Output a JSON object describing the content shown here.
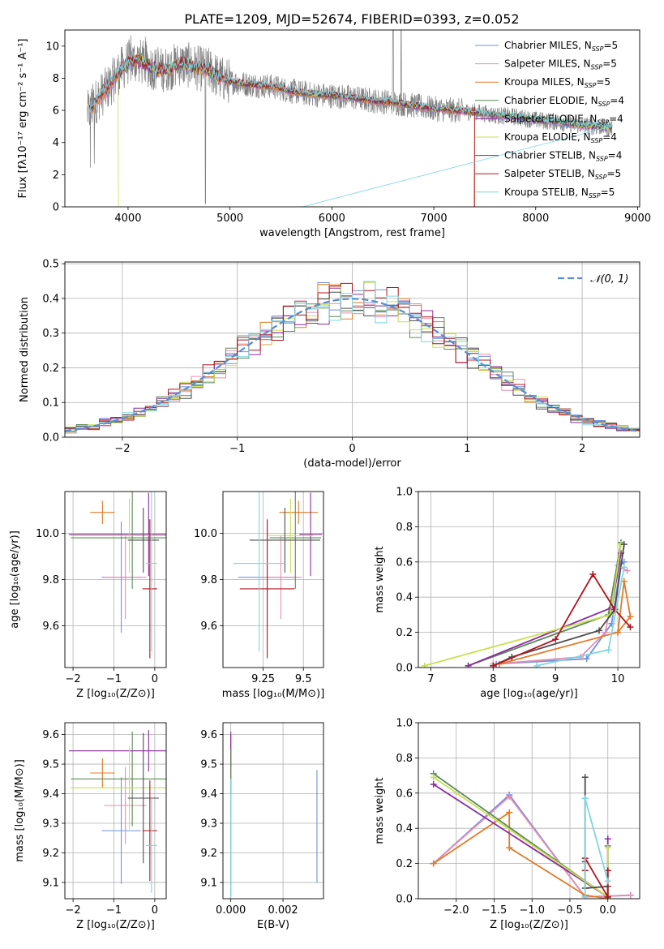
{
  "title": "PLATE=1209, MJD=52674, FIBERID=0393, z=0.052",
  "colors": {
    "Chabrier MILES": "#6f8fe0",
    "Salpeter MILES": "#e58fb3",
    "Kroupa MILES": "#e07b28",
    "Chabrier ELODIE": "#5b8a5b",
    "Salpeter ELODIE": "#8b2c9e",
    "Kroupa ELODIE": "#c9df50",
    "Chabrier STELIB": "#4d4d4d",
    "Salpeter STELIB": "#b0141d",
    "Kroupa STELIB": "#7fd6df",
    "data": "#808080",
    "gauss": "#5b8bd0",
    "grid": "#b0b0b0"
  },
  "chart_data": [
    {
      "id": "spectrum",
      "type": "line",
      "xlabel": "wavelength [Angstrom, rest frame]",
      "ylabel": "Flux [fλ10⁻¹⁷ erg cm⁻² s⁻¹ A⁻¹]",
      "xlim": [
        3380,
        9020
      ],
      "ylim": [
        0,
        11
      ],
      "xticks": [
        4000,
        5000,
        6000,
        7000,
        8000,
        9000
      ],
      "yticks": [
        0,
        2,
        4,
        6,
        8,
        10
      ],
      "grid": false,
      "legend_position": "top-right",
      "legend": [
        {
          "base": "Chabrier MILES, N",
          "sub": "SSP",
          "tail": "=5"
        },
        {
          "base": "Salpeter MILES, N",
          "sub": "SSP",
          "tail": "=5"
        },
        {
          "base": "Kroupa MILES, N",
          "sub": "SSP",
          "tail": "=5"
        },
        {
          "base": "Chabrier ELODIE, N",
          "sub": "SSP",
          "tail": "=4"
        },
        {
          "base": "Salpeter ELODIE, N",
          "sub": "SSP",
          "tail": "=4"
        },
        {
          "base": "Kroupa ELODIE, N",
          "sub": "SSP",
          "tail": "=4"
        },
        {
          "base": "Chabrier STELIB, N",
          "sub": "SSP",
          "tail": "=4"
        },
        {
          "base": "Salpeter STELIB, N",
          "sub": "SSP",
          "tail": "=5"
        },
        {
          "base": "Kroupa STELIB, N",
          "sub": "SSP",
          "tail": "=5"
        }
      ],
      "continuum": {
        "x": [
          3600,
          3700,
          3800,
          3900,
          4000,
          4100,
          4200,
          4300,
          4400,
          4500,
          4600,
          4700,
          4800,
          4900,
          5000,
          5200,
          5400,
          5600,
          5800,
          6000,
          6200,
          6400,
          6600,
          6800,
          7000,
          7200,
          7400,
          7600,
          7800,
          8000,
          8200,
          8400,
          8600,
          8750
        ],
        "y": [
          5.8,
          6.7,
          7.4,
          8.3,
          9.0,
          9.1,
          8.8,
          8.5,
          8.6,
          8.9,
          8.8,
          8.6,
          8.5,
          8.0,
          7.8,
          7.6,
          7.5,
          7.2,
          7.0,
          6.9,
          6.8,
          6.6,
          6.5,
          6.3,
          6.1,
          6.0,
          5.9,
          5.7,
          5.6,
          5.4,
          5.3,
          5.1,
          5.0,
          4.9
        ]
      }
    },
    {
      "id": "residuals",
      "type": "line",
      "xlabel": "(data-model)/error",
      "ylabel": "Normed distribution",
      "xlim": [
        -2.5,
        2.5
      ],
      "ylim": [
        0,
        0.505
      ],
      "xticks": [
        -2,
        -1,
        0,
        1,
        2
      ],
      "yticks": [
        0.0,
        0.1,
        0.2,
        0.3,
        0.4,
        0.5
      ],
      "grid": true,
      "legend_position": "top-right",
      "legend": [
        {
          "name": "𝒩(0, 1)"
        }
      ],
      "bin_width": 0.1
    },
    {
      "id": "age_vs_Z",
      "type": "scatter",
      "xlabel": "Z [log₁₀(Z/Z⊙)]",
      "ylabel": "age  [log₁₀(age/yr)]",
      "xlim": [
        -2.2,
        0.28
      ],
      "ylim": [
        9.42,
        10.18
      ],
      "xticks": [
        -2,
        -1,
        0
      ],
      "yticks": [
        9.6,
        9.8,
        10.0
      ],
      "grid": true,
      "points": [
        {
          "series": "Chabrier MILES",
          "x": -0.82,
          "xerr": 0.48,
          "y": 9.81,
          "yerr": 0.24
        },
        {
          "series": "Salpeter MILES",
          "x": -0.72,
          "xerr": 0.52,
          "y": 9.81,
          "yerr": 0.18
        },
        {
          "series": "Kroupa MILES",
          "x": -1.28,
          "xerr": 0.3,
          "y": 10.09,
          "yerr": 0.05
        },
        {
          "series": "Chabrier ELODIE",
          "x": -0.55,
          "xerr": 1.5,
          "y": 9.98,
          "yerr": 0.22
        },
        {
          "series": "Salpeter ELODIE",
          "x": -0.15,
          "xerr": 1.95,
          "y": 9.995,
          "yerr": 0.18
        },
        {
          "series": "Kroupa ELODIE",
          "x": -0.62,
          "xerr": 1.45,
          "y": 9.99,
          "yerr": 0.16
        },
        {
          "series": "Chabrier STELIB",
          "x": -0.28,
          "xerr": 0.38,
          "y": 9.97,
          "yerr": 0.14
        },
        {
          "series": "Salpeter STELIB",
          "x": -0.12,
          "xerr": 0.18,
          "y": 9.76,
          "yerr": 0.3
        },
        {
          "series": "Kroupa STELIB",
          "x": -0.08,
          "xerr": 0.14,
          "y": 9.87,
          "yerr": 0.38
        }
      ]
    },
    {
      "id": "age_vs_mass",
      "type": "scatter",
      "xlabel": "mass [log₁₀(M/M⊙)]",
      "ylabel": "",
      "xlim": [
        9.0,
        9.625
      ],
      "ylim": [
        9.42,
        10.18
      ],
      "xticks": [
        9.25,
        9.5
      ],
      "yticks": [
        9.6,
        9.8,
        10.0
      ],
      "grid": true,
      "points": [
        {
          "series": "Chabrier MILES",
          "x": 9.275,
          "xerr": 0.18,
          "y": 9.81,
          "yerr": 0.24
        },
        {
          "series": "Salpeter MILES",
          "x": 9.36,
          "xerr": 0.13,
          "y": 9.81,
          "yerr": 0.18
        },
        {
          "series": "Kroupa MILES",
          "x": 9.47,
          "xerr": 0.12,
          "y": 10.09,
          "yerr": 0.05
        },
        {
          "series": "Chabrier ELODIE",
          "x": 9.45,
          "xerr": 0.16,
          "y": 9.98,
          "yerr": 0.22
        },
        {
          "series": "Salpeter ELODIE",
          "x": 9.545,
          "xerr": 0.07,
          "y": 9.995,
          "yerr": 0.18
        },
        {
          "series": "Kroupa ELODIE",
          "x": 9.42,
          "xerr": 0.14,
          "y": 9.99,
          "yerr": 0.16
        },
        {
          "series": "Chabrier STELIB",
          "x": 9.385,
          "xerr": 0.22,
          "y": 9.97,
          "yerr": 0.14
        },
        {
          "series": "Salpeter STELIB",
          "x": 9.275,
          "xerr": 0.17,
          "y": 9.76,
          "yerr": 0.3
        },
        {
          "series": "Kroupa STELIB",
          "x": 9.225,
          "xerr": 0.16,
          "y": 9.87,
          "yerr": 0.38
        }
      ]
    },
    {
      "id": "mass_weight_vs_age",
      "type": "line",
      "xlabel": "age  [log₁₀(age/yr)]",
      "ylabel": "mass weight",
      "xlim": [
        6.8,
        10.35
      ],
      "ylim": [
        0,
        1
      ],
      "xticks": [
        7,
        8,
        9,
        10
      ],
      "yticks": [
        0.0,
        0.2,
        0.4,
        0.6,
        0.8,
        1.0
      ],
      "grid": true,
      "series": [
        {
          "name": "Chabrier MILES",
          "x": [
            8.05,
            9.5,
            9.9,
            10.05,
            10.1
          ],
          "y": [
            0.02,
            0.05,
            0.25,
            0.59,
            0.6
          ]
        },
        {
          "name": "Salpeter MILES",
          "x": [
            8.0,
            9.4,
            9.8,
            10.0,
            10.15
          ],
          "y": [
            0.02,
            0.06,
            0.2,
            0.58,
            0.55
          ]
        },
        {
          "name": "Kroupa MILES",
          "x": [
            8.1,
            10.0,
            10.1,
            10.2,
            10.0
          ],
          "y": [
            0.02,
            0.2,
            0.49,
            0.29,
            0.2
          ]
        },
        {
          "name": "Chabrier ELODIE",
          "x": [
            7.6,
            9.85,
            10.05
          ],
          "y": [
            0.01,
            0.3,
            0.71
          ]
        },
        {
          "name": "Salpeter ELODIE",
          "x": [
            7.6,
            9.9,
            10.05
          ],
          "y": [
            0.01,
            0.34,
            0.65
          ]
        },
        {
          "name": "Kroupa ELODIE",
          "x": [
            6.9,
            9.88,
            10.05
          ],
          "y": [
            0.01,
            0.3,
            0.7
          ]
        },
        {
          "name": "Chabrier STELIB",
          "x": [
            8.0,
            8.3,
            9.7,
            9.95,
            10.1
          ],
          "y": [
            0.01,
            0.06,
            0.21,
            0.33,
            0.7
          ]
        },
        {
          "name": "Salpeter STELIB",
          "x": [
            8.0,
            9.0,
            9.6,
            9.95,
            10.2
          ],
          "y": [
            0.01,
            0.16,
            0.53,
            0.33,
            0.23
          ]
        },
        {
          "name": "Kroupa STELIB",
          "x": [
            8.7,
            9.85,
            10.1
          ],
          "y": [
            0.01,
            0.1,
            0.57
          ]
        }
      ]
    },
    {
      "id": "mass_vs_Z",
      "type": "scatter",
      "xlabel": "Z [log₁₀(Z/Z⊙)]",
      "ylabel": "mass [log₁₀(M/M⊙)]",
      "xlim": [
        -2.2,
        0.28
      ],
      "ylim": [
        9.045,
        9.64
      ],
      "xticks": [
        -2,
        -1,
        0
      ],
      "yticks": [
        9.1,
        9.2,
        9.3,
        9.4,
        9.5,
        9.6
      ],
      "grid": true,
      "points": [
        {
          "series": "Chabrier MILES",
          "x": -0.82,
          "xerr": 0.48,
          "y": 9.275,
          "yerr": 0.18
        },
        {
          "series": "Salpeter MILES",
          "x": -0.72,
          "xerr": 0.52,
          "y": 9.36,
          "yerr": 0.13
        },
        {
          "series": "Kroupa MILES",
          "x": -1.28,
          "xerr": 0.3,
          "y": 9.47,
          "yerr": 0.05
        },
        {
          "series": "Chabrier ELODIE",
          "x": -0.55,
          "xerr": 1.5,
          "y": 9.45,
          "yerr": 0.16
        },
        {
          "series": "Salpeter ELODIE",
          "x": -0.15,
          "xerr": 1.95,
          "y": 9.545,
          "yerr": 0.07
        },
        {
          "series": "Kroupa ELODIE",
          "x": -0.62,
          "xerr": 1.45,
          "y": 9.42,
          "yerr": 0.14
        },
        {
          "series": "Chabrier STELIB",
          "x": -0.28,
          "xerr": 0.38,
          "y": 9.385,
          "yerr": 0.22
        },
        {
          "series": "Salpeter STELIB",
          "x": -0.12,
          "xerr": 0.18,
          "y": 9.275,
          "yerr": 0.17
        },
        {
          "series": "Kroupa STELIB",
          "x": -0.08,
          "xerr": 0.14,
          "y": 9.225,
          "yerr": 0.16
        }
      ]
    },
    {
      "id": "mass_vs_ebv",
      "type": "scatter",
      "xlabel": "E(B-V)",
      "ylabel": "",
      "xlim": [
        -0.0003,
        0.00355
      ],
      "ylim": [
        9.045,
        9.64
      ],
      "xticks": [
        0.0,
        0.002
      ],
      "xtick_labels": [
        "0.000",
        "0.002"
      ],
      "yticks": [
        9.1,
        9.2,
        9.3,
        9.4,
        9.5,
        9.6
      ],
      "grid": true,
      "points": [
        {
          "series": "Chabrier MILES",
          "x": 0.0033,
          "y": 9.29,
          "yerr": 0.19
        },
        {
          "series": "Salpeter STELIB",
          "x": 0.0,
          "y": 9.5,
          "yerr": 0.1
        },
        {
          "series": "Salpeter ELODIE",
          "x": 0.0,
          "y": 9.55,
          "yerr": 0.06
        },
        {
          "series": "Chabrier ELODIE",
          "x": 0.0,
          "y": 9.3,
          "yerr": 0.25
        },
        {
          "series": "Kroupa STELIB",
          "x": 0.0,
          "y": 9.25,
          "yerr": 0.2
        }
      ]
    },
    {
      "id": "mass_weight_vs_Z",
      "type": "line",
      "xlabel": "Z [log₁₀(Z/Z⊙)]",
      "ylabel": "mass weight",
      "xlim": [
        -2.5,
        0.42
      ],
      "ylim": [
        0,
        1
      ],
      "xticks": [
        -2.0,
        -1.5,
        -1.0,
        -0.5,
        0.0
      ],
      "xtick_labels": [
        "−2.0",
        "−1.5",
        "−1.0",
        "−0.5",
        "0.0"
      ],
      "yticks": [
        0.0,
        0.2,
        0.4,
        0.6,
        0.8,
        1.0
      ],
      "grid": true,
      "series": [
        {
          "name": "Chabrier MILES",
          "x": [
            -2.3,
            -1.3,
            -0.3,
            0.3
          ],
          "y": [
            0.2,
            0.59,
            0.01,
            0.02
          ]
        },
        {
          "name": "Salpeter MILES",
          "x": [
            -2.3,
            -1.3,
            -0.3,
            0.3
          ],
          "y": [
            0.2,
            0.58,
            0.01,
            0.02
          ]
        },
        {
          "name": "Kroupa MILES",
          "x": [
            -2.3,
            -1.3,
            -1.3,
            -0.3,
            0.0
          ],
          "y": [
            0.2,
            0.49,
            0.29,
            0.02,
            0.0
          ]
        },
        {
          "name": "Chabrier ELODIE",
          "x": [
            -2.3,
            0.0,
            0.0
          ],
          "y": [
            0.71,
            0.01,
            0.3
          ]
        },
        {
          "name": "Salpeter ELODIE",
          "x": [
            -2.3,
            0.0,
            0.0
          ],
          "y": [
            0.65,
            0.01,
            0.34
          ]
        },
        {
          "name": "Kroupa ELODIE",
          "x": [
            -2.3,
            0.0,
            0.0
          ],
          "y": [
            0.69,
            0.01,
            0.29
          ]
        },
        {
          "name": "Chabrier STELIB",
          "x": [
            -0.3,
            -0.3,
            -0.3,
            0.0,
            0.0
          ],
          "y": [
            0.69,
            0.21,
            0.06,
            0.07,
            0.01
          ]
        },
        {
          "name": "Salpeter STELIB",
          "x": [
            -0.3,
            -0.3,
            0.0,
            0.0
          ],
          "y": [
            0.16,
            0.23,
            0.01,
            0.16
          ]
        },
        {
          "name": "Kroupa STELIB",
          "x": [
            -0.3,
            -0.3,
            0.0
          ],
          "y": [
            0.01,
            0.57,
            0.1
          ]
        }
      ]
    }
  ]
}
